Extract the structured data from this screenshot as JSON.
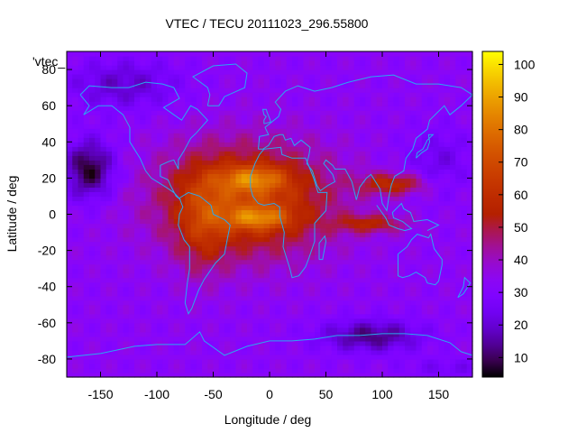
{
  "chart_data": {
    "type": "heatmap",
    "title": "VTEC / TECU 20111023_296.55800",
    "xlabel": "Longitude / deg",
    "ylabel": "Latitude / deg",
    "key_entry": "'vtec_",
    "xlim": [
      -180,
      180
    ],
    "ylim": [
      -90,
      90
    ],
    "x_ticks": [
      -150,
      -100,
      -50,
      0,
      50,
      100,
      150
    ],
    "y_ticks": [
      -80,
      -60,
      -40,
      -20,
      0,
      20,
      40,
      60,
      80
    ],
    "colorbar": {
      "range": [
        4,
        104
      ],
      "ticks": [
        10,
        20,
        30,
        40,
        50,
        60,
        70,
        80,
        90,
        100
      ],
      "palette": "black-purple-red-orange-yellow"
    },
    "grid_resolution_deg": {
      "lon": 5,
      "lat": 2.5
    },
    "field_features": [
      {
        "name": "northern crest",
        "lon": -15,
        "lat": 20,
        "value": 95
      },
      {
        "name": "southern crest",
        "lon": -10,
        "lat": -2,
        "value": 95
      },
      {
        "name": "trough",
        "lon": -20,
        "lat": 8,
        "value": 68
      },
      {
        "name": "south america",
        "lon": -60,
        "lat": -5,
        "value": 60
      },
      {
        "name": "asia tail",
        "lon": 110,
        "lat": 17,
        "value": 62
      },
      {
        "name": "low night",
        "lon": -160,
        "lat": 25,
        "value": 6
      },
      {
        "name": "low south",
        "lon": 90,
        "lat": -67,
        "value": 10
      }
    ],
    "background_value": 33
  }
}
